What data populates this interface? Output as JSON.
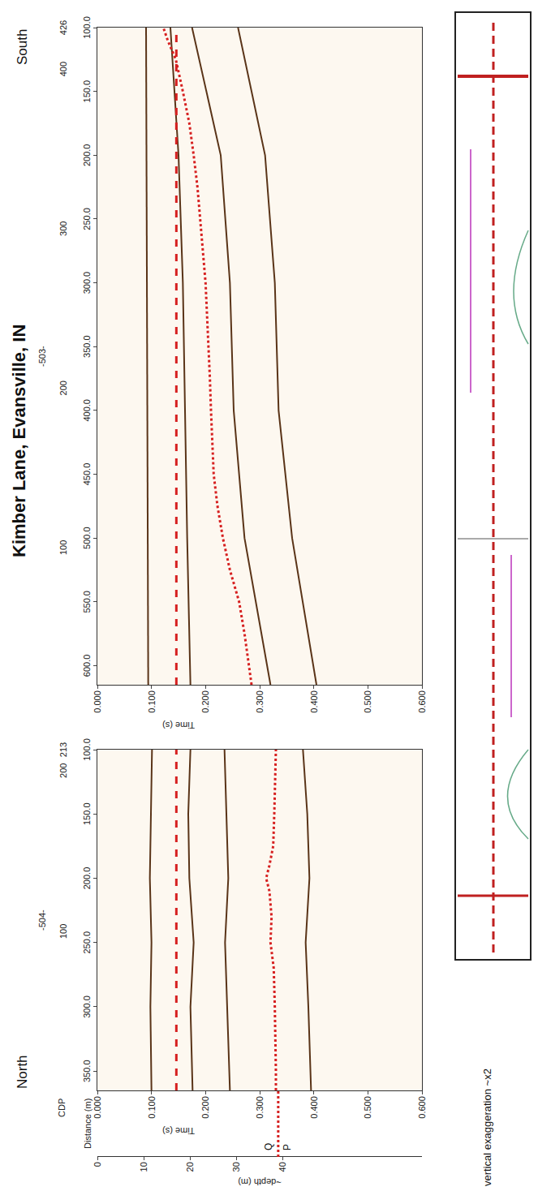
{
  "title": "Kimber Lane, Evansville, IN",
  "axis_labels": {
    "cdp": "CDP",
    "distance": "Distance (m)",
    "time": "Time (s)"
  },
  "note": "vertical exaggeration ~x2",
  "depth_axis": {
    "title": "~depth (m)",
    "ylim": [
      0,
      70
    ],
    "yticks": [
      0,
      10,
      20,
      30,
      40
    ],
    "tie_depth": 39,
    "color": "#d62020",
    "line_style": "dotted",
    "markers": [
      {
        "label": "Q",
        "depth": 37
      },
      {
        "label": "P",
        "depth": 41
      }
    ]
  },
  "chart_data": [
    {
      "type": "line",
      "end_label": "North",
      "line_label": "-504-",
      "xlim": [
        365,
        100
      ],
      "xticks": [
        {
          "value": 350,
          "label": "350.0"
        },
        {
          "value": 300,
          "label": "300.0"
        },
        {
          "value": 250,
          "label": "250.0"
        },
        {
          "value": 200,
          "label": "200.0"
        },
        {
          "value": 150,
          "label": "150.0"
        },
        {
          "value": 100,
          "label": "100.0"
        }
      ],
      "x2lim": [
        1,
        213
      ],
      "x2ticks": [
        100,
        200,
        213
      ],
      "ylim": [
        0,
        0.6
      ],
      "yticks": [
        {
          "value": 0,
          "label": "0.000"
        },
        {
          "value": 0.1,
          "label": "0.100"
        },
        {
          "value": 0.2,
          "label": "0.200"
        },
        {
          "value": 0.3,
          "label": "0.300"
        },
        {
          "value": 0.4,
          "label": "0.400"
        },
        {
          "value": 0.5,
          "label": "0.500"
        },
        {
          "value": 0.6,
          "label": "0.600"
        }
      ],
      "series": [
        {
          "color": "#5a3418",
          "line_style": "solid",
          "x": [
            365,
            300,
            250,
            200,
            150,
            100
          ],
          "values": [
            0.1,
            0.098,
            0.1,
            0.097,
            0.099,
            0.101
          ]
        },
        {
          "color": "#5a3418",
          "line_style": "solid",
          "x": [
            365,
            300,
            250,
            200,
            150,
            100
          ],
          "values": [
            0.176,
            0.172,
            0.178,
            0.17,
            0.168,
            0.172
          ]
        },
        {
          "color": "#5a3418",
          "line_style": "solid",
          "x": [
            365,
            300,
            250,
            200,
            150,
            100
          ],
          "values": [
            0.245,
            0.24,
            0.236,
            0.242,
            0.238,
            0.235
          ]
        },
        {
          "color": "#5a3418",
          "line_style": "solid",
          "x": [
            365,
            300,
            250,
            200,
            150,
            100
          ],
          "values": [
            0.395,
            0.39,
            0.385,
            0.392,
            0.388,
            0.38
          ]
        },
        {
          "color": "#d62020",
          "line_style": "dashed",
          "x": [
            365,
            100
          ],
          "values": [
            0.146,
            0.146
          ]
        },
        {
          "color": "#d62020",
          "line_style": "dotted",
          "x": [
            365,
            350,
            300,
            270,
            250,
            230,
            210,
            200,
            190,
            175,
            150,
            125,
            100
          ],
          "values": [
            0.33,
            0.33,
            0.328,
            0.326,
            0.32,
            0.322,
            0.318,
            0.312,
            0.318,
            0.325,
            0.327,
            0.328,
            0.33
          ]
        }
      ]
    },
    {
      "type": "line",
      "end_label": "South",
      "line_label": "-503-",
      "xlim": [
        615,
        100
      ],
      "xticks": [
        {
          "value": 600,
          "label": "600.0"
        },
        {
          "value": 550,
          "label": "550.0"
        },
        {
          "value": 500,
          "label": "500.0"
        },
        {
          "value": 450,
          "label": "450.0"
        },
        {
          "value": 400,
          "label": "400.0"
        },
        {
          "value": 350,
          "label": "350.0"
        },
        {
          "value": 300,
          "label": "300.0"
        },
        {
          "value": 250,
          "label": "250.0"
        },
        {
          "value": 200,
          "label": "200.0"
        },
        {
          "value": 150,
          "label": "150.0"
        },
        {
          "value": 100,
          "label": "100.0"
        }
      ],
      "x2lim": [
        14,
        426
      ],
      "x2ticks": [
        100,
        200,
        300,
        400,
        426
      ],
      "ylim": [
        0,
        0.6
      ],
      "yticks": [
        {
          "value": 0,
          "label": "0.000"
        },
        {
          "value": 0.1,
          "label": "0.100"
        },
        {
          "value": 0.2,
          "label": "0.200"
        },
        {
          "value": 0.3,
          "label": "0.300"
        },
        {
          "value": 0.4,
          "label": "0.400"
        },
        {
          "value": 0.5,
          "label": "0.500"
        },
        {
          "value": 0.6,
          "label": "0.600"
        }
      ],
      "series": [
        {
          "color": "#5a3418",
          "line_style": "solid",
          "x": [
            615,
            500,
            400,
            300,
            200,
            100
          ],
          "values": [
            0.094,
            0.093,
            0.092,
            0.092,
            0.091,
            0.09
          ]
        },
        {
          "color": "#5a3418",
          "line_style": "solid",
          "x": [
            615,
            500,
            400,
            300,
            200,
            100
          ],
          "values": [
            0.172,
            0.166,
            0.162,
            0.158,
            0.15,
            0.135
          ]
        },
        {
          "color": "#5a3418",
          "line_style": "solid",
          "x": [
            615,
            500,
            400,
            300,
            200,
            100
          ],
          "values": [
            0.32,
            0.272,
            0.252,
            0.245,
            0.228,
            0.175
          ]
        },
        {
          "color": "#5a3418",
          "line_style": "solid",
          "x": [
            615,
            500,
            400,
            300,
            200,
            100
          ],
          "values": [
            0.405,
            0.36,
            0.335,
            0.328,
            0.31,
            0.26
          ]
        },
        {
          "color": "#d62020",
          "line_style": "dashed",
          "x": [
            615,
            100
          ],
          "values": [
            0.146,
            0.146
          ]
        },
        {
          "color": "#d62020",
          "line_style": "dotted",
          "x": [
            615,
            600,
            575,
            550,
            525,
            500,
            475,
            450,
            425,
            400,
            375,
            350,
            325,
            300,
            275,
            250,
            225,
            200,
            175,
            150,
            125,
            110,
            100
          ],
          "values": [
            0.285,
            0.28,
            0.272,
            0.262,
            0.245,
            0.232,
            0.222,
            0.215,
            0.212,
            0.21,
            0.208,
            0.205,
            0.203,
            0.2,
            0.195,
            0.19,
            0.185,
            0.178,
            0.17,
            0.158,
            0.145,
            0.13,
            0.122
          ]
        }
      ]
    }
  ]
}
